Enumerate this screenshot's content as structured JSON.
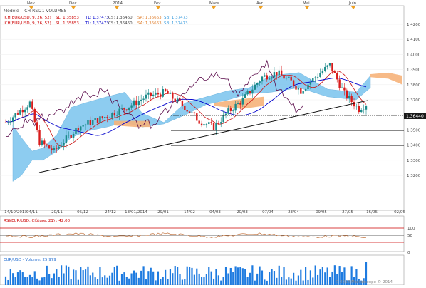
{
  "top_months": [
    "Nov",
    "Dec",
    "2014",
    "Fev",
    "Mars",
    "Avr",
    "Mai",
    "Juin"
  ],
  "legend": {
    "model": "Modèle : ICH-RSI21-VOLUMES",
    "line1": {
      "name": "ICH(EUR/USD, 9, 26, 52)",
      "sl": "SL: 1,35853",
      "tl": "TL: 1,37473",
      "cs": "CS: 1,36460",
      "sa": "SA: 1,36663",
      "sb": "SB: 1,37473"
    },
    "line2": {
      "name": "ICH(EUR/USD, 9, 26, 52)",
      "sl": "SL: 1,35853",
      "tl": "TL: 1,37473",
      "cs": "CS: 1,36460",
      "sa": "SA: 1,36663",
      "sb": "SB: 1,37473"
    }
  },
  "price_axis": [
    "1,4200",
    "1,4100",
    "1,4000",
    "1,3900",
    "1,3800",
    "1,3700",
    "1,3600",
    "1,3500",
    "1,3400",
    "1,3300",
    "1,3200"
  ],
  "current_price_tag": "1,36440",
  "date_axis": [
    "14/10/2013",
    "04/11",
    "20/11",
    "06/12",
    "24/12",
    "13/01/2014",
    "29/01",
    "14/02",
    "04/03",
    "20/03",
    "07/04",
    "23/04",
    "09/05",
    "27/05",
    "16/06",
    "02/06"
  ],
  "rsi_panel": {
    "label": "RSI(EUR/USD, Clôture, 21) : 42,00",
    "ticks": [
      "100",
      "50",
      "0"
    ]
  },
  "volume_panel": {
    "label": "EUR/USD - Volume: 25 979"
  },
  "copyright": "© 2014 Marketscope © 2014",
  "colors": {
    "bull": "#1b8a8a",
    "bear": "#d81b1b",
    "cloud_bull": "#7ac4ee",
    "cloud_bear": "#f6b27a",
    "tenkan": "#cc1111",
    "kijun": "#0000cc",
    "chikou": "#5a0a4a",
    "volume": "#1e7be0"
  },
  "chart_data": {
    "type": "candlestick",
    "title": "",
    "instrument": "EUR/USD",
    "ylim": [
      1.315,
      1.425
    ],
    "last_price": 1.3644,
    "indicators": [
      "Ichimoku (9, 26, 52)",
      "RSI 21",
      "Volume"
    ],
    "rsi_last": 42.0,
    "volume_last": 25979
  }
}
